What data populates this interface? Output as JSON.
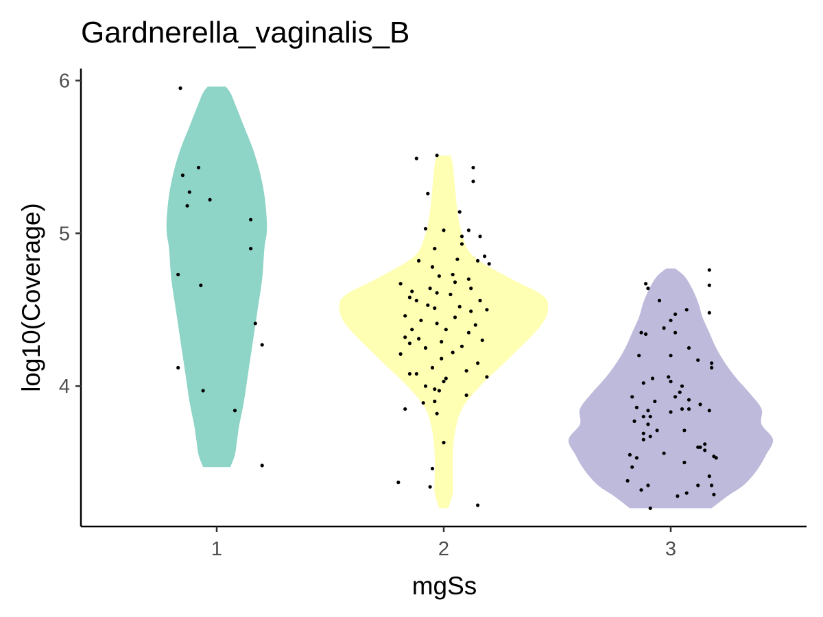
{
  "chart_data": {
    "type": "violin",
    "title": "Gardnerella_vaginalis_B",
    "xlabel": "mgSs",
    "ylabel": "log10(Coverage)",
    "categories": [
      "1",
      "2",
      "3"
    ],
    "yticks": [
      "4",
      "5",
      "6"
    ],
    "ylim": [
      3.1,
      6.1
    ],
    "grid": false,
    "legend": "none",
    "colors": [
      "#8ed4c7",
      "#ffffb3",
      "#bebadb"
    ],
    "point_color": "#000000",
    "series": [
      {
        "category": "1",
        "violin_profile": [
          [
            3.47,
            0.06
          ],
          [
            3.55,
            0.08
          ],
          [
            3.65,
            0.09
          ],
          [
            3.75,
            0.1
          ],
          [
            3.9,
            0.12
          ],
          [
            4.1,
            0.14
          ],
          [
            4.3,
            0.16
          ],
          [
            4.5,
            0.18
          ],
          [
            4.7,
            0.2
          ],
          [
            4.9,
            0.21
          ],
          [
            5.0,
            0.22
          ],
          [
            5.1,
            0.22
          ],
          [
            5.25,
            0.21
          ],
          [
            5.4,
            0.19
          ],
          [
            5.55,
            0.16
          ],
          [
            5.7,
            0.12
          ],
          [
            5.85,
            0.08
          ],
          [
            5.92,
            0.06
          ],
          [
            5.96,
            0.04
          ]
        ],
        "points": [
          [
            0.84,
            5.95
          ],
          [
            0.92,
            5.43
          ],
          [
            0.85,
            5.38
          ],
          [
            0.88,
            5.27
          ],
          [
            0.87,
            5.18
          ],
          [
            0.97,
            5.22
          ],
          [
            1.15,
            5.09
          ],
          [
            1.15,
            4.9
          ],
          [
            0.83,
            4.73
          ],
          [
            0.93,
            4.66
          ],
          [
            1.17,
            4.41
          ],
          [
            1.2,
            4.27
          ],
          [
            0.83,
            4.12
          ],
          [
            0.94,
            3.97
          ],
          [
            1.08,
            3.84
          ],
          [
            1.2,
            3.48
          ]
        ]
      },
      {
        "category": "2",
        "violin_profile": [
          [
            3.2,
            0.02
          ],
          [
            3.3,
            0.04
          ],
          [
            3.4,
            0.04
          ],
          [
            3.55,
            0.04
          ],
          [
            3.7,
            0.05
          ],
          [
            3.85,
            0.08
          ],
          [
            4.0,
            0.16
          ],
          [
            4.2,
            0.3
          ],
          [
            4.4,
            0.43
          ],
          [
            4.52,
            0.46
          ],
          [
            4.6,
            0.43
          ],
          [
            4.7,
            0.3
          ],
          [
            4.85,
            0.13
          ],
          [
            5.0,
            0.08
          ],
          [
            5.15,
            0.06
          ],
          [
            5.3,
            0.05
          ],
          [
            5.45,
            0.04
          ],
          [
            5.51,
            0.03
          ]
        ],
        "points": [
          [
            1.88,
            5.49
          ],
          [
            1.97,
            5.51
          ],
          [
            2.13,
            5.43
          ],
          [
            2.13,
            5.34
          ],
          [
            1.93,
            5.26
          ],
          [
            2.07,
            5.14
          ],
          [
            1.92,
            5.03
          ],
          [
            2.0,
            5.02
          ],
          [
            2.11,
            5.02
          ],
          [
            2.08,
            4.98
          ],
          [
            2.16,
            4.98
          ],
          [
            2.08,
            4.93
          ],
          [
            1.96,
            4.9
          ],
          [
            2.18,
            4.85
          ],
          [
            2.15,
            4.82
          ],
          [
            2.06,
            4.83
          ],
          [
            1.89,
            4.82
          ],
          [
            2.2,
            4.8
          ],
          [
            1.95,
            4.78
          ],
          [
            2.04,
            4.73
          ],
          [
            1.98,
            4.72
          ],
          [
            2.11,
            4.7
          ],
          [
            1.81,
            4.67
          ],
          [
            2.05,
            4.68
          ],
          [
            1.94,
            4.64
          ],
          [
            2.12,
            4.64
          ],
          [
            1.86,
            4.62
          ],
          [
            1.97,
            4.61
          ],
          [
            2.03,
            4.6
          ],
          [
            1.85,
            4.58
          ],
          [
            1.88,
            4.56
          ],
          [
            2.16,
            4.56
          ],
          [
            1.93,
            4.53
          ],
          [
            2.07,
            4.52
          ],
          [
            1.96,
            4.51
          ],
          [
            2.19,
            4.5
          ],
          [
            2.12,
            4.49
          ],
          [
            1.83,
            4.46
          ],
          [
            2.05,
            4.45
          ],
          [
            1.9,
            4.43
          ],
          [
            1.97,
            4.41
          ],
          [
            2.14,
            4.4
          ],
          [
            1.86,
            4.37
          ],
          [
            2.01,
            4.37
          ],
          [
            2.11,
            4.35
          ],
          [
            1.83,
            4.32
          ],
          [
            1.89,
            4.31
          ],
          [
            2.17,
            4.3
          ],
          [
            1.99,
            4.29
          ],
          [
            1.85,
            4.28
          ],
          [
            2.08,
            4.26
          ],
          [
            1.92,
            4.25
          ],
          [
            2.04,
            4.22
          ],
          [
            1.81,
            4.21
          ],
          [
            1.99,
            4.18
          ],
          [
            2.15,
            4.15
          ],
          [
            1.95,
            4.12
          ],
          [
            2.1,
            4.1
          ],
          [
            1.85,
            4.08
          ],
          [
            1.88,
            4.08
          ],
          [
            2.19,
            4.06
          ],
          [
            2.01,
            4.05
          ],
          [
            2.0,
            4.03
          ],
          [
            1.92,
            4.0
          ],
          [
            1.96,
            3.98
          ],
          [
            1.98,
            3.97
          ],
          [
            2.1,
            3.94
          ],
          [
            1.96,
            3.9
          ],
          [
            1.91,
            3.89
          ],
          [
            1.83,
            3.85
          ],
          [
            1.97,
            3.82
          ],
          [
            2.0,
            3.63
          ],
          [
            1.95,
            3.46
          ],
          [
            1.8,
            3.37
          ],
          [
            1.94,
            3.34
          ],
          [
            2.15,
            3.22
          ]
        ]
      },
      {
        "category": "3",
        "violin_profile": [
          [
            3.2,
            0.18
          ],
          [
            3.28,
            0.25
          ],
          [
            3.35,
            0.32
          ],
          [
            3.45,
            0.38
          ],
          [
            3.55,
            0.42
          ],
          [
            3.65,
            0.45
          ],
          [
            3.75,
            0.4
          ],
          [
            3.85,
            0.4
          ],
          [
            3.95,
            0.35
          ],
          [
            4.05,
            0.29
          ],
          [
            4.15,
            0.24
          ],
          [
            4.25,
            0.2
          ],
          [
            4.35,
            0.17
          ],
          [
            4.45,
            0.14
          ],
          [
            4.55,
            0.12
          ],
          [
            4.65,
            0.09
          ],
          [
            4.72,
            0.06
          ],
          [
            4.77,
            0.02
          ]
        ],
        "points": [
          [
            3.17,
            4.76
          ],
          [
            2.89,
            4.67
          ],
          [
            2.9,
            4.64
          ],
          [
            3.17,
            4.66
          ],
          [
            2.95,
            4.56
          ],
          [
            3.07,
            4.5
          ],
          [
            3.17,
            4.48
          ],
          [
            3.02,
            4.47
          ],
          [
            3.0,
            4.43
          ],
          [
            2.97,
            4.38
          ],
          [
            2.87,
            4.35
          ],
          [
            2.89,
            4.34
          ],
          [
            3.02,
            4.35
          ],
          [
            3.08,
            4.25
          ],
          [
            2.86,
            4.2
          ],
          [
            3.0,
            4.2
          ],
          [
            3.12,
            4.17
          ],
          [
            3.18,
            4.15
          ],
          [
            3.18,
            4.12
          ],
          [
            2.99,
            4.06
          ],
          [
            2.92,
            4.05
          ],
          [
            3.0,
            4.03
          ],
          [
            3.05,
            4.0
          ],
          [
            2.88,
            4.02
          ],
          [
            3.04,
            3.96
          ],
          [
            2.83,
            3.93
          ],
          [
            3.02,
            3.93
          ],
          [
            3.08,
            3.91
          ],
          [
            2.93,
            3.9
          ],
          [
            3.13,
            3.88
          ],
          [
            3.05,
            3.85
          ],
          [
            2.85,
            3.86
          ],
          [
            2.9,
            3.84
          ],
          [
            3.08,
            3.85
          ],
          [
            3.17,
            3.84
          ],
          [
            3.0,
            3.83
          ],
          [
            2.91,
            3.8
          ],
          [
            2.88,
            3.8
          ],
          [
            2.84,
            3.77
          ],
          [
            2.9,
            3.75
          ],
          [
            3.06,
            3.71
          ],
          [
            2.94,
            3.71
          ],
          [
            2.88,
            3.69
          ],
          [
            2.91,
            3.67
          ],
          [
            2.88,
            3.65
          ],
          [
            3.15,
            3.62
          ],
          [
            3.12,
            3.6
          ],
          [
            3.15,
            3.58
          ],
          [
            3.13,
            3.6
          ],
          [
            2.97,
            3.56
          ],
          [
            2.82,
            3.55
          ],
          [
            2.85,
            3.53
          ],
          [
            3.19,
            3.54
          ],
          [
            3.2,
            3.53
          ],
          [
            3.06,
            3.5
          ],
          [
            2.83,
            3.47
          ],
          [
            3.17,
            3.41
          ],
          [
            2.81,
            3.38
          ],
          [
            3.18,
            3.35
          ],
          [
            3.12,
            3.35
          ],
          [
            2.9,
            3.35
          ],
          [
            2.87,
            3.32
          ],
          [
            3.07,
            3.3
          ],
          [
            3.19,
            3.29
          ],
          [
            3.03,
            3.28
          ],
          [
            2.91,
            3.2
          ]
        ]
      }
    ]
  }
}
